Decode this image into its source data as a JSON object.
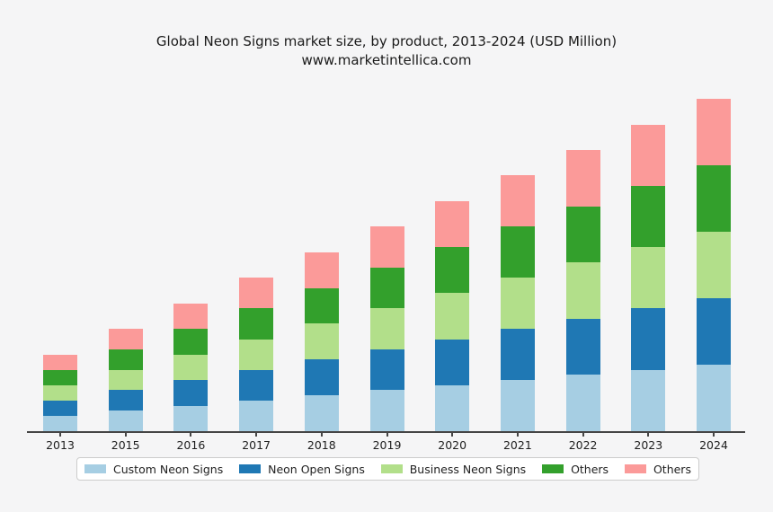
{
  "chart_data": {
    "type": "bar",
    "stacked": true,
    "title": "Global Neon Signs market size, by product, 2013-2024 (USD Million)",
    "subtitle": "www.marketintellica.com",
    "categories": [
      "2013",
      "2015",
      "2016",
      "2017",
      "2018",
      "2019",
      "2020",
      "2021",
      "2022",
      "2023",
      "2024"
    ],
    "series": [
      {
        "name": "Custom Neon Signs",
        "color": "#a6cee3",
        "values": [
          60,
          80,
          100,
          120,
          140,
          160,
          180,
          200,
          220,
          240,
          260
        ]
      },
      {
        "name": "Neon Open Signs",
        "color": "#1f78b4",
        "values": [
          60,
          80,
          100,
          120,
          140,
          160,
          180,
          200,
          220,
          240,
          260
        ]
      },
      {
        "name": "Business Neon Signs",
        "color": "#b2df8a",
        "values": [
          60,
          80,
          100,
          120,
          140,
          160,
          180,
          200,
          220,
          240,
          260
        ]
      },
      {
        "name": "Others",
        "color": "#33a02c",
        "values": [
          60,
          80,
          100,
          120,
          140,
          160,
          180,
          200,
          220,
          240,
          260
        ]
      },
      {
        "name": "Others",
        "color": "#fb9a99",
        "values": [
          60,
          80,
          100,
          120,
          140,
          160,
          180,
          200,
          220,
          240,
          260
        ]
      }
    ],
    "totals": [
      300,
      400,
      500,
      600,
      700,
      800,
      900,
      1000,
      1100,
      1200,
      1300
    ],
    "xlabel": "",
    "ylabel": "",
    "ylim": [
      0,
      1365
    ],
    "grid": false,
    "legend_position": "bottom"
  },
  "colors": {
    "background": "#f5f5f6",
    "axis": "#454545",
    "text": "#1a1a1a",
    "legend_border": "#cccccc",
    "legend_background": "#ffffff"
  }
}
